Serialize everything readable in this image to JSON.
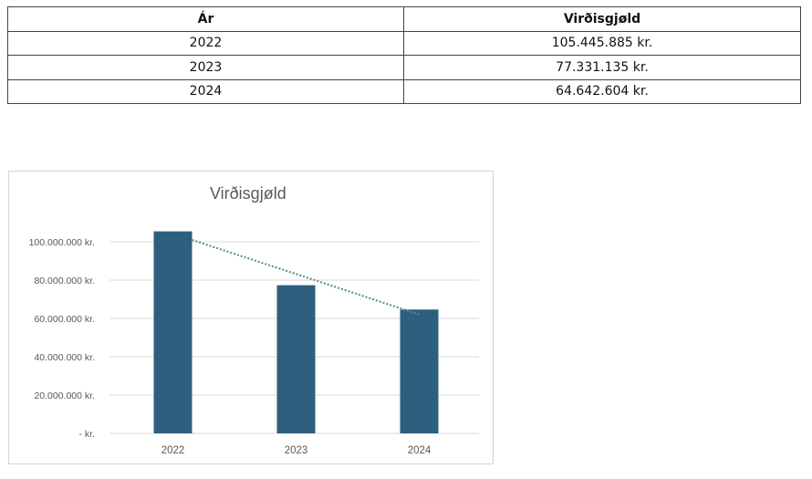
{
  "table": {
    "headers": [
      "Ár",
      "Virðisgjøld"
    ],
    "rows": [
      {
        "year": "2022",
        "value": "105.445.885 kr."
      },
      {
        "year": "2023",
        "value": "77.331.135 kr."
      },
      {
        "year": "2024",
        "value": "64.642.604 kr."
      }
    ]
  },
  "chart_data": {
    "type": "bar",
    "title": "Virðisgjøld",
    "categories": [
      "2022",
      "2023",
      "2024"
    ],
    "values": [
      105445885,
      77331135,
      64642604
    ],
    "ylim": [
      0,
      100000000
    ],
    "yticks": [
      {
        "value": 0,
        "label": "-   kr."
      },
      {
        "value": 20000000,
        "label": "20.000.000 kr."
      },
      {
        "value": 40000000,
        "label": "40.000.000 kr."
      },
      {
        "value": 60000000,
        "label": "60.000.000 kr."
      },
      {
        "value": 80000000,
        "label": "80.000.000 kr."
      },
      {
        "value": 100000000,
        "label": "100.000.000 kr."
      }
    ],
    "grid": true,
    "trendline": "linear, dotted",
    "colors": {
      "bar": "#2e5f7e",
      "trend": "#5a8a8a",
      "grid": "#d9d9d9",
      "tick": "#595959"
    }
  }
}
